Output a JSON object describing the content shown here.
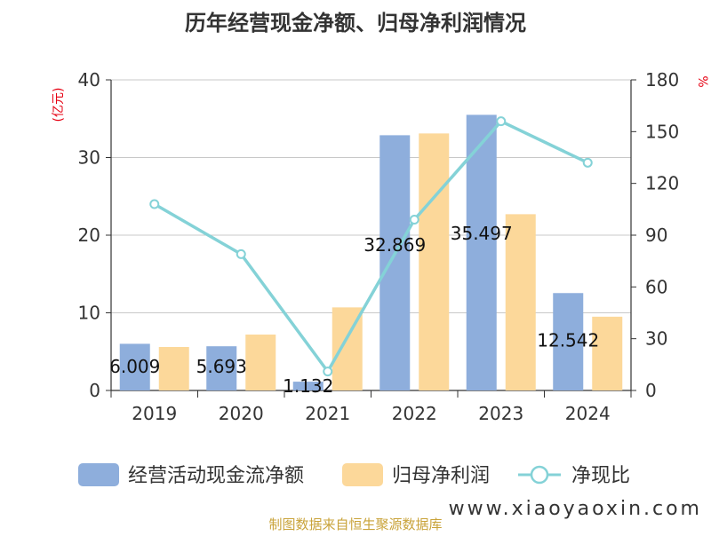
{
  "title": "历年经营现金净额、归母净利润情况",
  "chart_data": {
    "type": "bar",
    "categories": [
      "2019",
      "2020",
      "2021",
      "2022",
      "2023",
      "2024"
    ],
    "series": [
      {
        "name": "经营活动现金流净额",
        "type": "bar",
        "axis": "left",
        "color": "#8eaedc",
        "values": [
          6.009,
          5.693,
          1.132,
          32.869,
          35.497,
          12.542
        ],
        "labels": [
          "6.009",
          "5.693",
          "1.132",
          "32.869",
          "35.497",
          "12.542"
        ]
      },
      {
        "name": "归母净利润",
        "type": "bar",
        "axis": "left",
        "color": "#fcd89a",
        "values": [
          5.6,
          7.2,
          10.7,
          33.1,
          22.7,
          9.5
        ]
      },
      {
        "name": "净现比",
        "type": "line",
        "axis": "right",
        "color": "#84d2d7",
        "values": [
          108,
          79,
          11,
          99,
          156,
          132
        ]
      }
    ],
    "left_axis": {
      "unit": "(亿元)",
      "min": 0,
      "max": 40,
      "ticks": [
        0,
        10,
        20,
        30,
        40
      ]
    },
    "right_axis": {
      "unit": "%",
      "min": 0,
      "max": 180,
      "ticks": [
        0,
        30,
        60,
        90,
        120,
        150,
        180
      ]
    },
    "grid": true,
    "legend_position": "bottom"
  },
  "source": "制图数据来自恒生聚源数据库",
  "watermark": "www.xiaoyaoxin.com"
}
